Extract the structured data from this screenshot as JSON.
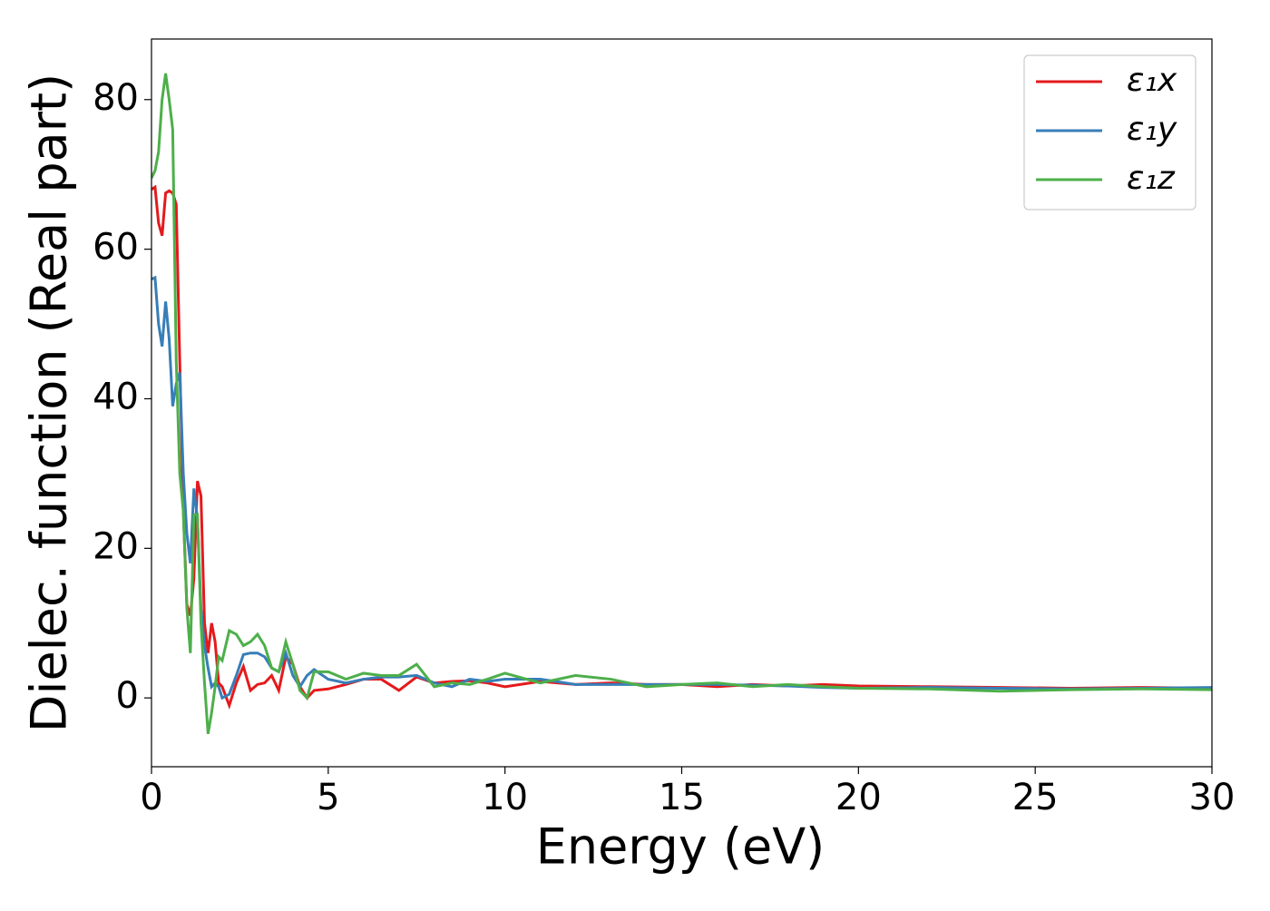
{
  "chart_data": {
    "type": "line",
    "xlabel": "Energy (eV)",
    "ylabel": "Dielec. function (Real part)",
    "x": [
      0,
      0.1,
      0.2,
      0.3,
      0.4,
      0.5,
      0.6,
      0.7,
      0.8,
      0.9,
      1.0,
      1.1,
      1.2,
      1.3,
      1.4,
      1.5,
      1.6,
      1.7,
      1.8,
      1.9,
      2.0,
      2.2,
      2.4,
      2.6,
      2.8,
      3.0,
      3.2,
      3.4,
      3.6,
      3.8,
      4.0,
      4.2,
      4.4,
      4.6,
      5.0,
      5.5,
      6,
      6.5,
      7,
      7.5,
      8,
      8.5,
      9,
      9.5,
      10,
      11,
      12,
      13,
      14,
      15,
      16,
      17,
      18,
      19,
      20,
      22,
      24,
      26,
      28,
      30
    ],
    "series": [
      {
        "name": "ε₁x",
        "color": "#e41a1c",
        "values": [
          68,
          68.3,
          63.5,
          61.8,
          67.5,
          67.8,
          67.5,
          66,
          45,
          25,
          12.5,
          11,
          16,
          29,
          27,
          10,
          6,
          10,
          7.5,
          2,
          1.5,
          -1,
          2,
          4.2,
          1,
          1.8,
          2,
          3,
          1,
          5.5,
          4.5,
          1.5,
          0,
          1,
          1.2,
          1.8,
          2.5,
          2.5,
          1,
          2.8,
          2,
          2.2,
          2.3,
          2,
          1.5,
          2.2,
          1.8,
          2,
          1.8,
          1.8,
          1.5,
          1.8,
          1.6,
          1.8,
          1.6,
          1.5,
          1.4,
          1.3,
          1.4,
          1.3
        ]
      },
      {
        "name": "ε₁y",
        "color": "#377eb8",
        "values": [
          56,
          56.2,
          50,
          47,
          53,
          48,
          39,
          42,
          43.5,
          30,
          22,
          18,
          28,
          24,
          12,
          7,
          4,
          1.5,
          2,
          1.5,
          0,
          0.5,
          3,
          5.8,
          6,
          6,
          5.5,
          4,
          3.5,
          6,
          3,
          1.5,
          3,
          3.8,
          2.5,
          2,
          2.5,
          2.8,
          2.8,
          3,
          2,
          1.5,
          2.5,
          2.2,
          2.5,
          2.5,
          1.8,
          1.8,
          1.8,
          1.8,
          1.8,
          1.7,
          1.6,
          1.4,
          1.3,
          1.4,
          1.3,
          1.2,
          1.3,
          1.4
        ]
      },
      {
        "name": "ε₁z",
        "color": "#4daf4a",
        "values": [
          69.5,
          70.5,
          73,
          80,
          83.5,
          80,
          76,
          45,
          30,
          25,
          12,
          6,
          24.5,
          24.5,
          10,
          2,
          -4.8,
          -2,
          1.5,
          5.5,
          5,
          9,
          8.5,
          7,
          7.5,
          8.5,
          7,
          4,
          3.5,
          7.5,
          4.5,
          1,
          0,
          3.5,
          3.5,
          2.5,
          3.3,
          3,
          3,
          4.5,
          1.5,
          2,
          1.8,
          2.5,
          3.3,
          2,
          3,
          2.5,
          1.5,
          1.8,
          2,
          1.5,
          1.8,
          1.5,
          1.3,
          1.2,
          0.9,
          1.1,
          1.2,
          1.1
        ]
      }
    ],
    "xlim": [
      0,
      30
    ],
    "xticks": [
      0,
      5,
      10,
      15,
      20,
      25,
      30
    ],
    "ylim": [
      -9.2,
      88.1
    ],
    "yticks": [
      0,
      20,
      40,
      60,
      80
    ],
    "legend": "upper right"
  }
}
